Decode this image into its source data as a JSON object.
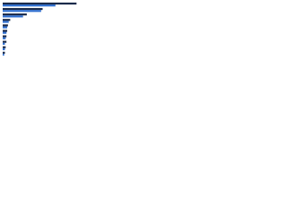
{
  "chart_data": {
    "type": "bar",
    "orientation": "horizontal",
    "categories": [
      null,
      null,
      null,
      null,
      null,
      null,
      null,
      null,
      null,
      null
    ],
    "series": [
      {
        "color": "#1a2a4a",
        "values": [
          98,
          53,
          32,
          10,
          7,
          6,
          5,
          5,
          4,
          3
        ]
      },
      {
        "color": "#2f6fd0",
        "values": [
          70,
          51,
          27,
          8,
          6,
          5,
          4,
          3,
          3,
          2
        ]
      }
    ],
    "xlim": [
      0,
      100
    ]
  }
}
